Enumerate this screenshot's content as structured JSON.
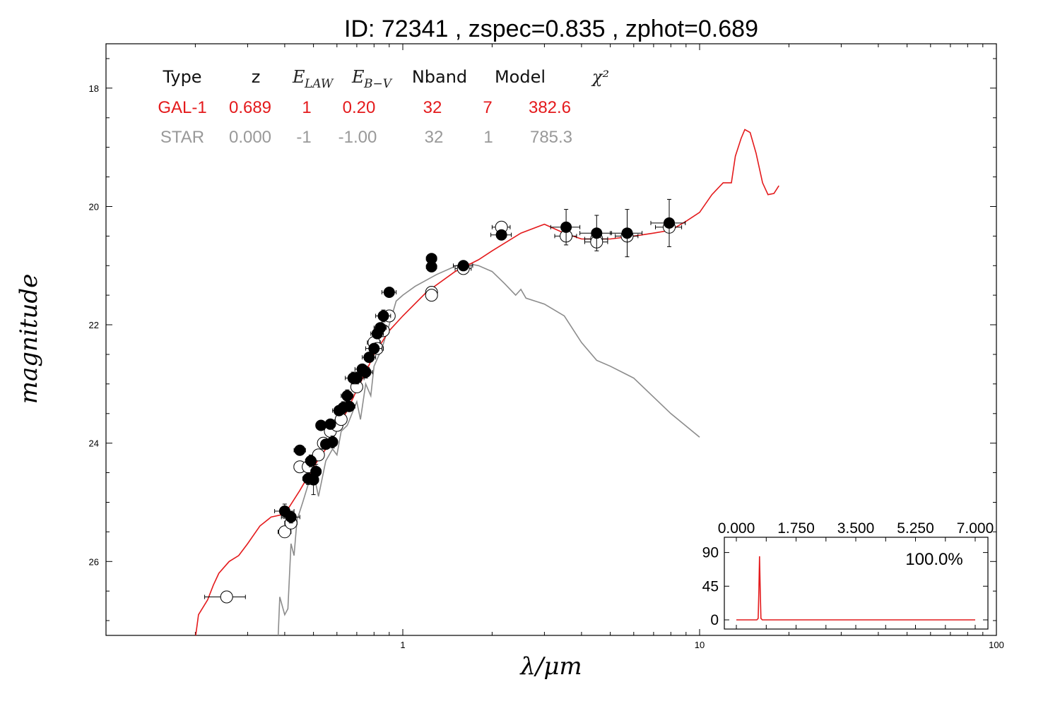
{
  "chart_data": {
    "type": "scatter",
    "title": "ID:  72341 , zspec=0.835 , zphot=0.689",
    "xlabel": "λ/μm",
    "ylabel": "magnitude",
    "xscale": "log",
    "xlim": [
      0.1,
      100
    ],
    "ylim": [
      27.25,
      17.25
    ],
    "x_ticks": [
      "1",
      "10",
      "100"
    ],
    "y_ticks": [
      "18",
      "20",
      "22",
      "24",
      "26"
    ],
    "grid": false,
    "colors": {
      "gal": "#e41a1c",
      "star": "#8c8c8c",
      "obs_filled": "#000000",
      "obs_open": "#ffffff"
    },
    "fit_table": {
      "headers": [
        "Type",
        "z",
        "E_LAW",
        "E_B-V",
        "Nband",
        "Model",
        "χ²"
      ],
      "rows": [
        {
          "type": "GAL-1",
          "z": "0.689",
          "elaw": "1",
          "ebv": "0.20",
          "nband": "32",
          "model": "7",
          "chi2": "382.6",
          "color": "#e41a1c"
        },
        {
          "type": "STAR",
          "z": "0.000",
          "elaw": "-1",
          "ebv": "-1.00",
          "nband": "32",
          "model": "1",
          "chi2": "785.3",
          "color": "#999999"
        }
      ]
    },
    "series": [
      {
        "name": "GAL-1",
        "kind": "line",
        "color": "#e41a1c",
        "points": [
          [
            0.2,
            27.3
          ],
          [
            0.205,
            26.9
          ],
          [
            0.22,
            26.65
          ],
          [
            0.23,
            26.4
          ],
          [
            0.24,
            26.2
          ],
          [
            0.26,
            26.0
          ],
          [
            0.28,
            25.9
          ],
          [
            0.3,
            25.7
          ],
          [
            0.33,
            25.4
          ],
          [
            0.36,
            25.25
          ],
          [
            0.4,
            25.2
          ],
          [
            0.45,
            24.8
          ],
          [
            0.5,
            24.4
          ],
          [
            0.55,
            24.1
          ],
          [
            0.6,
            23.75
          ],
          [
            0.65,
            23.45
          ],
          [
            0.7,
            23.1
          ],
          [
            0.75,
            22.8
          ],
          [
            0.8,
            22.5
          ],
          [
            0.9,
            22.1
          ],
          [
            1.0,
            21.85
          ],
          [
            1.2,
            21.45
          ],
          [
            1.5,
            21.1
          ],
          [
            1.8,
            20.9
          ],
          [
            2.0,
            20.75
          ],
          [
            2.5,
            20.45
          ],
          [
            3.0,
            20.3
          ],
          [
            3.5,
            20.45
          ],
          [
            4.0,
            20.55
          ],
          [
            5.0,
            20.55
          ],
          [
            6.0,
            20.5
          ],
          [
            7.0,
            20.45
          ],
          [
            8.0,
            20.4
          ],
          [
            9.0,
            20.25
          ],
          [
            10.0,
            20.1
          ],
          [
            11.0,
            19.8
          ],
          [
            12.0,
            19.6
          ],
          [
            12.8,
            19.6
          ],
          [
            13.2,
            19.15
          ],
          [
            13.8,
            18.85
          ],
          [
            14.2,
            18.7
          ],
          [
            14.8,
            18.75
          ],
          [
            15.5,
            19.1
          ],
          [
            16.3,
            19.6
          ],
          [
            17.0,
            19.8
          ],
          [
            17.8,
            19.78
          ],
          [
            18.5,
            19.65
          ]
        ]
      },
      {
        "name": "STAR",
        "kind": "line",
        "color": "#8c8c8c",
        "points": [
          [
            0.38,
            27.3
          ],
          [
            0.385,
            26.6
          ],
          [
            0.4,
            26.9
          ],
          [
            0.41,
            26.8
          ],
          [
            0.42,
            25.7
          ],
          [
            0.43,
            25.9
          ],
          [
            0.44,
            25.3
          ],
          [
            0.46,
            25.0
          ],
          [
            0.48,
            24.7
          ],
          [
            0.5,
            24.5
          ],
          [
            0.52,
            24.9
          ],
          [
            0.55,
            24.3
          ],
          [
            0.58,
            24.1
          ],
          [
            0.6,
            24.2
          ],
          [
            0.62,
            23.8
          ],
          [
            0.65,
            23.7
          ],
          [
            0.7,
            23.3
          ],
          [
            0.72,
            23.6
          ],
          [
            0.75,
            23.0
          ],
          [
            0.78,
            23.2
          ],
          [
            0.8,
            22.7
          ],
          [
            0.85,
            22.4
          ],
          [
            0.9,
            22.0
          ],
          [
            0.95,
            21.6
          ],
          [
            1.0,
            21.5
          ],
          [
            1.1,
            21.35
          ],
          [
            1.3,
            21.15
          ],
          [
            1.6,
            20.95
          ],
          [
            1.8,
            21.0
          ],
          [
            2.0,
            21.1
          ],
          [
            2.2,
            21.3
          ],
          [
            2.4,
            21.5
          ],
          [
            2.5,
            21.4
          ],
          [
            2.6,
            21.55
          ],
          [
            3.0,
            21.65
          ],
          [
            3.5,
            21.85
          ],
          [
            4.0,
            22.3
          ],
          [
            4.5,
            22.6
          ],
          [
            5.0,
            22.7
          ],
          [
            6.0,
            22.9
          ],
          [
            8.0,
            23.5
          ],
          [
            10.0,
            23.9
          ]
        ]
      },
      {
        "name": "observed",
        "kind": "scatter",
        "color": "#000000",
        "points": [
          [
            0.4,
            25.15,
            0.03,
            0.12
          ],
          [
            0.42,
            25.25,
            0.03,
            0.1
          ],
          [
            0.45,
            24.12,
            0.02,
            0.08
          ],
          [
            0.48,
            24.6,
            0.02,
            0.1
          ],
          [
            0.49,
            24.3,
            0.02,
            0.1
          ],
          [
            0.5,
            24.62,
            0.02,
            0.25
          ],
          [
            0.51,
            24.48,
            0.02,
            0.12
          ],
          [
            0.53,
            23.7,
            0.02,
            0.08
          ],
          [
            0.55,
            24.02,
            0.02,
            0.08
          ],
          [
            0.57,
            23.68,
            0.02,
            0.08
          ],
          [
            0.58,
            23.98,
            0.02,
            0.1
          ],
          [
            0.61,
            23.45,
            0.03,
            0.08
          ],
          [
            0.63,
            23.4,
            0.03,
            0.1
          ],
          [
            0.65,
            23.2,
            0.03,
            0.1
          ],
          [
            0.66,
            23.38,
            0.03,
            0.08
          ],
          [
            0.68,
            22.9,
            0.04,
            0.1
          ],
          [
            0.7,
            22.9,
            0.04,
            0.1
          ],
          [
            0.73,
            22.75,
            0.04,
            0.08
          ],
          [
            0.75,
            22.8,
            0.04,
            0.1
          ],
          [
            0.77,
            22.55,
            0.04,
            0.08
          ],
          [
            0.8,
            22.4,
            0.05,
            0.08
          ],
          [
            0.82,
            22.15,
            0.04,
            0.08
          ],
          [
            0.84,
            22.05,
            0.04,
            0.08
          ],
          [
            0.86,
            21.85,
            0.05,
            0.1
          ],
          [
            0.9,
            21.45,
            0.05,
            0.08
          ],
          [
            1.25,
            20.88,
            0.05,
            0.08
          ],
          [
            1.25,
            21.02,
            0.05,
            0.08
          ],
          [
            1.6,
            21.0,
            0.12,
            0.05
          ],
          [
            2.15,
            20.48,
            0.17,
            0.06
          ],
          [
            3.55,
            20.35,
            0.4,
            0.3
          ],
          [
            4.5,
            20.45,
            0.55,
            0.3
          ],
          [
            5.7,
            20.45,
            0.7,
            0.4
          ],
          [
            7.9,
            20.28,
            1.05,
            0.4
          ]
        ]
      },
      {
        "name": "model-photometry",
        "kind": "scatter",
        "color": "#ffffff",
        "points": [
          [
            0.255,
            26.6,
            0.04,
            0.05
          ],
          [
            0.4,
            25.5,
            0.02,
            0.05
          ],
          [
            0.42,
            25.35,
            0.02,
            0.05
          ],
          [
            0.45,
            24.4,
            0.02,
            0.05
          ],
          [
            0.48,
            24.4,
            0.02,
            0.05
          ],
          [
            0.52,
            24.2,
            0.02,
            0.05
          ],
          [
            0.54,
            24.0,
            0.02,
            0.05
          ],
          [
            0.57,
            23.8,
            0.02,
            0.05
          ],
          [
            0.6,
            23.7,
            0.02,
            0.05
          ],
          [
            0.62,
            23.6,
            0.02,
            0.05
          ],
          [
            0.7,
            23.05,
            0.03,
            0.05
          ],
          [
            0.8,
            22.3,
            0.04,
            0.05
          ],
          [
            0.82,
            22.4,
            0.04,
            0.05
          ],
          [
            0.86,
            22.1,
            0.04,
            0.05
          ],
          [
            0.9,
            21.85,
            0.04,
            0.05
          ],
          [
            1.25,
            21.45,
            0.05,
            0.05
          ],
          [
            1.25,
            21.5,
            0.05,
            0.05
          ],
          [
            1.6,
            21.05,
            0.1,
            0.05
          ],
          [
            2.15,
            20.35,
            0.15,
            0.05
          ],
          [
            3.55,
            20.5,
            0.3,
            0.05
          ],
          [
            4.5,
            20.55,
            0.4,
            0.05
          ],
          [
            4.5,
            20.6,
            0.4,
            0.05
          ],
          [
            5.7,
            20.5,
            0.5,
            0.05
          ],
          [
            7.9,
            20.35,
            0.8,
            0.05
          ]
        ]
      }
    ],
    "inset": {
      "type": "line",
      "x_ticks": [
        "0.000",
        "1.750",
        "3.500",
        "5.250",
        "7.000"
      ],
      "y_ticks": [
        "90",
        "45",
        "0"
      ],
      "xlim": [
        0,
        7
      ],
      "ylim": [
        0,
        100
      ],
      "label": "100.0%",
      "color": "#e41a1c",
      "x": [
        0,
        0.6,
        0.64,
        0.66,
        0.68,
        0.7,
        0.72,
        0.76,
        7
      ],
      "y": [
        0,
        0,
        2,
        40,
        85,
        40,
        2,
        0,
        0
      ]
    }
  }
}
